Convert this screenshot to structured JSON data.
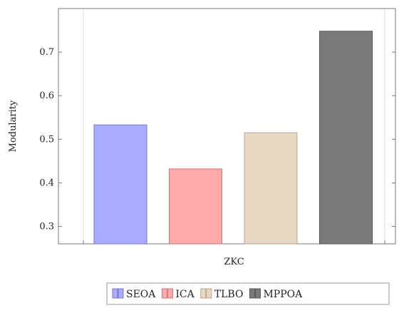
{
  "chart_data": {
    "type": "bar",
    "categories": [
      "ZKC"
    ],
    "xlabel": "ZKC",
    "ylabel": "Modularity",
    "ylim": [
      0.26,
      0.8
    ],
    "yticks": [
      0.3,
      0.4,
      0.5,
      0.6,
      0.7
    ],
    "grid": false,
    "legend_position": "bottom",
    "series": [
      {
        "name": "SEOA",
        "values": [
          0.533
        ],
        "color": "#aaaaff",
        "stroke": "#7777cc"
      },
      {
        "name": "ICA",
        "values": [
          0.432
        ],
        "color": "#ffaaaa",
        "stroke": "#cc7777"
      },
      {
        "name": "TLBO",
        "values": [
          0.515
        ],
        "color": "#e8d8c3",
        "stroke": "#b8a58c"
      },
      {
        "name": "MPPOA",
        "values": [
          0.748
        ],
        "color": "#7a7a7a",
        "stroke": "#555555"
      }
    ]
  }
}
